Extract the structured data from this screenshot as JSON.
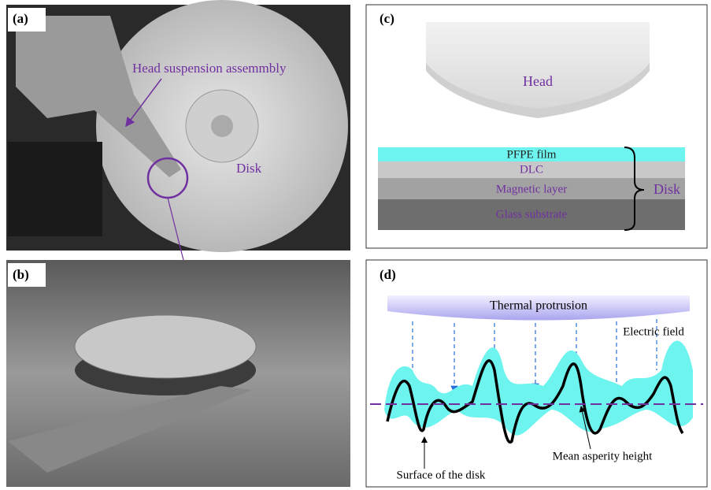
{
  "panels": [
    {
      "label": "(a)",
      "annotations": [
        "Head suspension assemmbly",
        "Disk"
      ]
    },
    {
      "label": "(b)"
    },
    {
      "label": "(c)",
      "head": "Head",
      "layers": [
        "PFPE film",
        "DLC",
        "Magnetic layer",
        "Glass substrate"
      ],
      "group": "Disk"
    },
    {
      "label": "(d)",
      "protrusion": "Thermal protrusion",
      "annotations": [
        "Electric field",
        "Surface of the disk",
        "Mean asperity height"
      ]
    }
  ]
}
